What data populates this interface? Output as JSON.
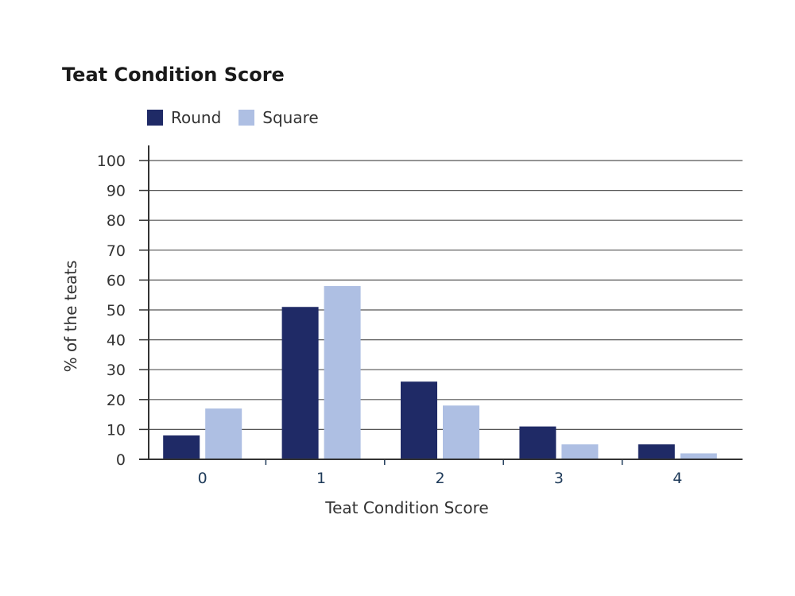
{
  "chart_data": {
    "type": "bar",
    "title": "Teat Condition Score",
    "xlabel": "Teat Condition Score",
    "ylabel": "% of the teats",
    "categories": [
      "0",
      "1",
      "2",
      "3",
      "4"
    ],
    "series": [
      {
        "name": "Round",
        "color": "#1f2a66",
        "values": [
          8,
          51,
          26,
          11,
          5
        ]
      },
      {
        "name": "Square",
        "color": "#aebfe3",
        "values": [
          17,
          58,
          18,
          5,
          2
        ]
      }
    ],
    "ylim": [
      0,
      100
    ],
    "yticks": [
      "0",
      "10",
      "20",
      "30",
      "40",
      "50",
      "60",
      "70",
      "80",
      "90",
      "100"
    ],
    "grid": true,
    "legend_position": "top-left"
  }
}
